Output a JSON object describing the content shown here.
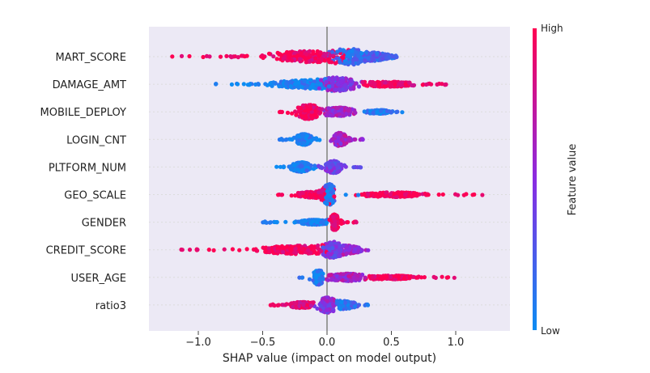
{
  "chart_data": {
    "type": "scatter",
    "subtype": "shap-beeswarm-summary",
    "xlabel": "SHAP value (impact on model output)",
    "xlim": [
      -1.4,
      1.43
    ],
    "xticks": [
      -1.0,
      -0.5,
      0.0,
      0.5,
      1.0
    ],
    "xtick_labels": [
      "−1.0",
      "−0.5",
      "0.0",
      "0.5",
      "1.0"
    ],
    "grid": true,
    "colorbar": {
      "title": "Feature value",
      "high_label": "High",
      "low_label": "Low",
      "low_color": "#0c8cf3",
      "mid_color": "#8a2be2",
      "high_color": "#ff0052"
    },
    "features": [
      {
        "label": "MART_SCORE",
        "min": -1.25,
        "max": 0.58,
        "clusters": [
          {
            "c": -0.18,
            "w": 0.45,
            "h": 0.45,
            "v": 0.95
          },
          {
            "c": 0.2,
            "w": 0.2,
            "h": 0.5,
            "v": 0.15
          },
          {
            "c": 0.42,
            "w": 0.15,
            "h": 0.15,
            "v": 0.2
          }
        ]
      },
      {
        "label": "DAMAGE_AMT",
        "min": -0.87,
        "max": 0.97,
        "clusters": [
          {
            "c": -0.2,
            "w": 0.35,
            "h": 0.3,
            "v": 0.05
          },
          {
            "c": 0.1,
            "w": 0.2,
            "h": 0.45,
            "v": 0.5
          },
          {
            "c": 0.5,
            "w": 0.3,
            "h": 0.2,
            "v": 0.95
          }
        ]
      },
      {
        "label": "MOBILE_DEPLOY",
        "min": -0.38,
        "max": 0.64,
        "clusters": [
          {
            "c": -0.15,
            "w": 0.12,
            "h": 0.6,
            "v": 0.97
          },
          {
            "c": 0.1,
            "w": 0.15,
            "h": 0.35,
            "v": 0.6
          },
          {
            "c": 0.4,
            "w": 0.12,
            "h": 0.15,
            "v": 0.1
          }
        ]
      },
      {
        "label": "LOGIN_CNT",
        "min": -0.37,
        "max": 0.28,
        "clusters": [
          {
            "c": -0.18,
            "w": 0.08,
            "h": 0.45,
            "v": 0.05
          },
          {
            "c": 0.1,
            "w": 0.06,
            "h": 0.55,
            "v": 0.6
          }
        ]
      },
      {
        "label": "PLTFORM_NUM",
        "min": -0.4,
        "max": 0.28,
        "clusters": [
          {
            "c": -0.2,
            "w": 0.1,
            "h": 0.4,
            "v": 0.05
          },
          {
            "c": 0.05,
            "w": 0.08,
            "h": 0.5,
            "v": 0.4
          }
        ]
      },
      {
        "label": "GEO_SCALE",
        "min": -0.4,
        "max": 1.3,
        "clusters": [
          {
            "c": -0.1,
            "w": 0.2,
            "h": 0.25,
            "v": 0.95
          },
          {
            "c": 0.02,
            "w": 0.05,
            "h": 0.7,
            "v": 0.08
          },
          {
            "c": 0.5,
            "w": 0.35,
            "h": 0.2,
            "v": 0.97
          }
        ]
      },
      {
        "label": "GENDER",
        "min": -0.5,
        "max": 0.23,
        "clusters": [
          {
            "c": -0.1,
            "w": 0.15,
            "h": 0.2,
            "v": 0.05
          },
          {
            "c": 0.06,
            "w": 0.03,
            "h": 0.6,
            "v": 0.97
          }
        ]
      },
      {
        "label": "CREDIT_SCORE",
        "min": -1.15,
        "max": 0.36,
        "clusters": [
          {
            "c": -0.25,
            "w": 0.4,
            "h": 0.35,
            "v": 0.97
          },
          {
            "c": 0.05,
            "w": 0.1,
            "h": 0.5,
            "v": 0.4
          },
          {
            "c": 0.2,
            "w": 0.1,
            "h": 0.2,
            "v": 0.6
          }
        ]
      },
      {
        "label": "USER_AGE",
        "min": -0.23,
        "max": 1.06,
        "clusters": [
          {
            "c": -0.07,
            "w": 0.05,
            "h": 0.55,
            "v": 0.08
          },
          {
            "c": 0.15,
            "w": 0.2,
            "h": 0.3,
            "v": 0.6
          },
          {
            "c": 0.5,
            "w": 0.25,
            "h": 0.15,
            "v": 0.95
          }
        ]
      },
      {
        "label": "ratio3",
        "min": -0.44,
        "max": 0.32,
        "clusters": [
          {
            "c": -0.2,
            "w": 0.12,
            "h": 0.25,
            "v": 0.9
          },
          {
            "c": 0.0,
            "w": 0.08,
            "h": 0.6,
            "v": 0.5
          },
          {
            "c": 0.15,
            "w": 0.1,
            "h": 0.3,
            "v": 0.15
          }
        ]
      }
    ]
  }
}
